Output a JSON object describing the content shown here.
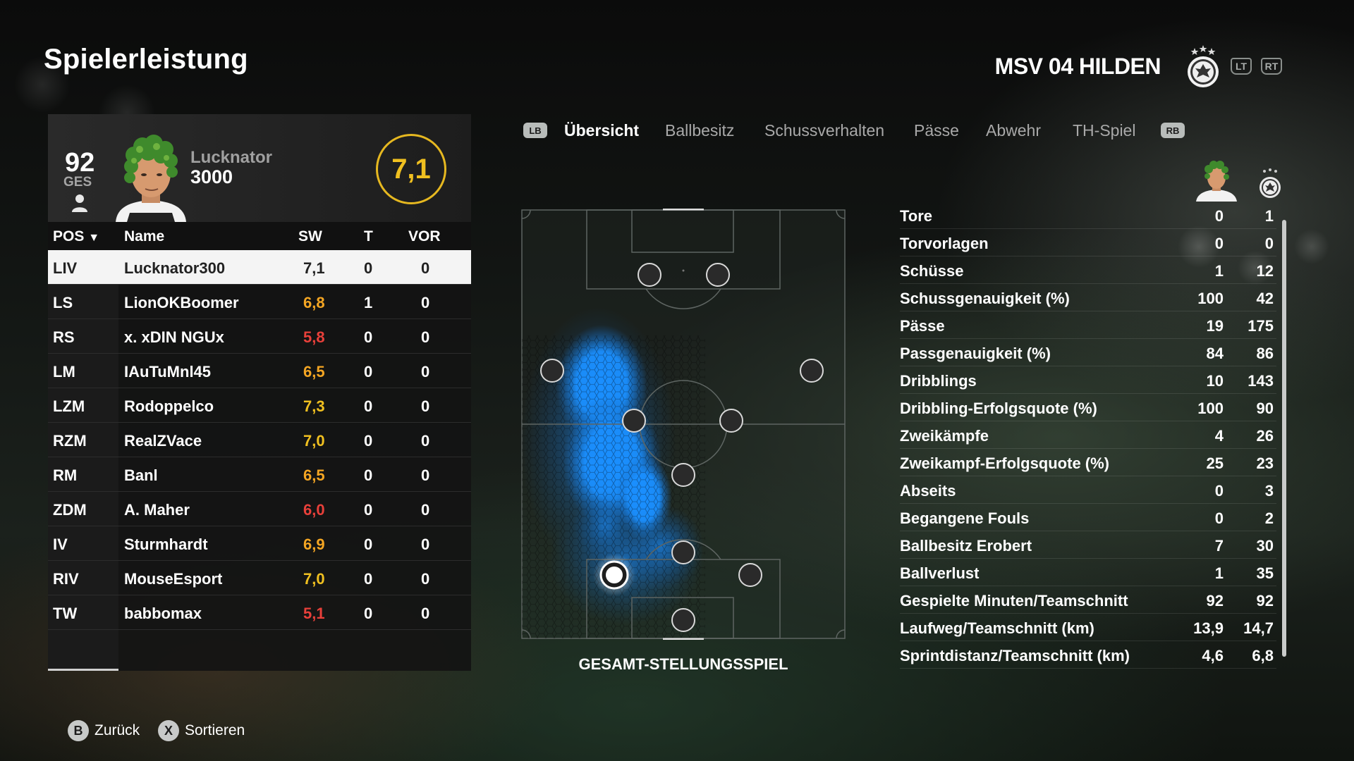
{
  "header": {
    "title": "Spielerleistung",
    "club_name": "MSV 04 HILDEN",
    "bumper_left": "LT",
    "bumper_right": "RT"
  },
  "player_card": {
    "overall": "92",
    "overall_label": "GES",
    "name": "Lucknator",
    "number": "3000",
    "rating": "7,1",
    "rating_color": "#f0c020"
  },
  "table": {
    "headers": {
      "pos": "POS",
      "name": "Name",
      "rating": "SW",
      "goals": "T",
      "assists": "VOR"
    },
    "rows": [
      {
        "pos": "LIV",
        "name": "Lucknator300",
        "rating": "7,1",
        "goals": "0",
        "assists": "0",
        "rating_color": "#222222"
      },
      {
        "pos": "LS",
        "name": "LionOKBoomer",
        "rating": "6,8",
        "goals": "1",
        "assists": "0",
        "rating_color": "#f5a623"
      },
      {
        "pos": "RS",
        "name": "x. xDIN NGUx",
        "rating": "5,8",
        "goals": "0",
        "assists": "0",
        "rating_color": "#e8403a"
      },
      {
        "pos": "LM",
        "name": "IAuTuMnl45",
        "rating": "6,5",
        "goals": "0",
        "assists": "0",
        "rating_color": "#f5a623"
      },
      {
        "pos": "LZM",
        "name": "Rodoppelco",
        "rating": "7,3",
        "goals": "0",
        "assists": "0",
        "rating_color": "#f0c020"
      },
      {
        "pos": "RZM",
        "name": "RealZVace",
        "rating": "7,0",
        "goals": "0",
        "assists": "0",
        "rating_color": "#f0c020"
      },
      {
        "pos": "RM",
        "name": "Banl",
        "rating": "6,5",
        "goals": "0",
        "assists": "0",
        "rating_color": "#f5a623"
      },
      {
        "pos": "ZDM",
        "name": "A. Maher",
        "rating": "6,0",
        "goals": "0",
        "assists": "0",
        "rating_color": "#e8403a"
      },
      {
        "pos": "IV",
        "name": "Sturmhardt",
        "rating": "6,9",
        "goals": "0",
        "assists": "0",
        "rating_color": "#f5a623"
      },
      {
        "pos": "RIV",
        "name": "MouseEsport",
        "rating": "7,0",
        "goals": "0",
        "assists": "0",
        "rating_color": "#f0c020"
      },
      {
        "pos": "TW",
        "name": "babbomax",
        "rating": "5,1",
        "goals": "0",
        "assists": "0",
        "rating_color": "#e8403a"
      }
    ]
  },
  "tabs": {
    "lb": "LB",
    "rb": "RB",
    "items": [
      "Übersicht",
      "Ballbesitz",
      "Schussverhalten",
      "Pässe",
      "Abwehr",
      "TH-Spiel"
    ],
    "active_index": 0
  },
  "pitch": {
    "caption": "GESAMT-STELLUNGSSPIEL",
    "heatmap_color": "#1a8fff"
  },
  "stats": [
    {
      "label": "Tore",
      "player": "0",
      "team": "1"
    },
    {
      "label": "Torvorlagen",
      "player": "0",
      "team": "0"
    },
    {
      "label": "Schüsse",
      "player": "1",
      "team": "12"
    },
    {
      "label": "Schussgenauigkeit (%)",
      "player": "100",
      "team": "42"
    },
    {
      "label": "Pässe",
      "player": "19",
      "team": "175"
    },
    {
      "label": "Passgenauigkeit (%)",
      "player": "84",
      "team": "86"
    },
    {
      "label": "Dribblings",
      "player": "10",
      "team": "143"
    },
    {
      "label": "Dribbling-Erfolgsquote (%)",
      "player": "100",
      "team": "90"
    },
    {
      "label": "Zweikämpfe",
      "player": "4",
      "team": "26"
    },
    {
      "label": "Zweikampf-Erfolgsquote (%)",
      "player": "25",
      "team": "23"
    },
    {
      "label": "Abseits",
      "player": "0",
      "team": "3"
    },
    {
      "label": "Begangene Fouls",
      "player": "0",
      "team": "2"
    },
    {
      "label": "Ballbesitz Erobert",
      "player": "7",
      "team": "30"
    },
    {
      "label": "Ballverlust",
      "player": "1",
      "team": "35"
    },
    {
      "label": "Gespielte Minuten/Teamschnitt",
      "player": "92",
      "team": "92"
    },
    {
      "label": "Laufweg/Teamschnitt (km)",
      "player": "13,9",
      "team": "14,7"
    },
    {
      "label": "Sprintdistanz/Teamschnitt (km)",
      "player": "4,6",
      "team": "6,8"
    }
  ],
  "footer": {
    "back_key": "B",
    "back_label": "Zurück",
    "sort_key": "X",
    "sort_label": "Sortieren"
  }
}
